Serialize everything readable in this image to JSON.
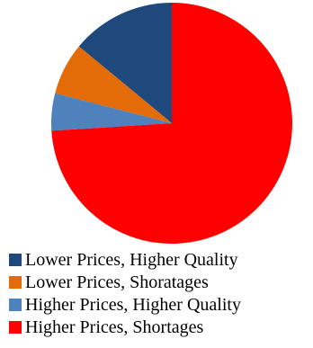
{
  "chart_data": {
    "type": "pie",
    "title": "",
    "categories": [
      "Lower Prices, Higher Quality",
      "Lower Prices, Shoratages",
      "Higher Prices, Higher Quality",
      "Higher Prices, Shortages"
    ],
    "values": [
      14,
      7,
      5,
      74
    ],
    "colors": [
      "#1F497D",
      "#E36C09",
      "#4F81BD",
      "#FF0000"
    ],
    "legend_position": "bottom"
  }
}
